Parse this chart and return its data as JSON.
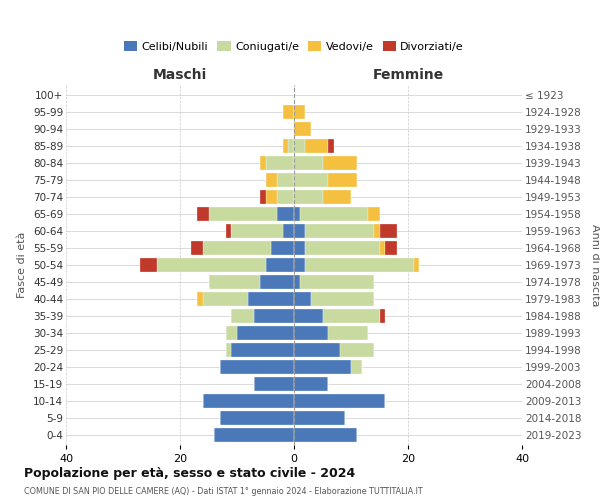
{
  "age_groups": [
    "0-4",
    "5-9",
    "10-14",
    "15-19",
    "20-24",
    "25-29",
    "30-34",
    "35-39",
    "40-44",
    "45-49",
    "50-54",
    "55-59",
    "60-64",
    "65-69",
    "70-74",
    "75-79",
    "80-84",
    "85-89",
    "90-94",
    "95-99",
    "100+"
  ],
  "birth_years": [
    "2019-2023",
    "2014-2018",
    "2009-2013",
    "2004-2008",
    "1999-2003",
    "1994-1998",
    "1989-1993",
    "1984-1988",
    "1979-1983",
    "1974-1978",
    "1969-1973",
    "1964-1968",
    "1959-1963",
    "1954-1958",
    "1949-1953",
    "1944-1948",
    "1939-1943",
    "1934-1938",
    "1929-1933",
    "1924-1928",
    "≤ 1923"
  ],
  "colors": {
    "celibi": "#4b78b8",
    "coniugati": "#c8daa0",
    "vedovi": "#f5c040",
    "divorziati": "#c0392b"
  },
  "maschi": {
    "celibi": [
      14,
      13,
      16,
      7,
      13,
      11,
      10,
      7,
      8,
      6,
      5,
      4,
      2,
      3,
      0,
      0,
      0,
      0,
      0,
      0,
      0
    ],
    "coniugati": [
      0,
      0,
      0,
      0,
      0,
      1,
      2,
      4,
      8,
      9,
      19,
      12,
      9,
      12,
      3,
      3,
      5,
      1,
      0,
      0,
      0
    ],
    "vedovi": [
      0,
      0,
      0,
      0,
      0,
      0,
      0,
      0,
      1,
      0,
      0,
      0,
      0,
      0,
      2,
      2,
      1,
      1,
      0,
      2,
      0
    ],
    "divorziati": [
      0,
      0,
      0,
      0,
      0,
      0,
      0,
      0,
      0,
      0,
      3,
      2,
      1,
      2,
      1,
      0,
      0,
      0,
      0,
      0,
      0
    ]
  },
  "femmine": {
    "celibi": [
      11,
      9,
      16,
      6,
      10,
      8,
      6,
      5,
      3,
      1,
      2,
      2,
      2,
      1,
      0,
      0,
      0,
      0,
      0,
      0,
      0
    ],
    "coniugati": [
      0,
      0,
      0,
      0,
      2,
      6,
      7,
      10,
      11,
      13,
      19,
      13,
      12,
      12,
      5,
      6,
      5,
      2,
      0,
      0,
      0
    ],
    "vedovi": [
      0,
      0,
      0,
      0,
      0,
      0,
      0,
      0,
      0,
      0,
      1,
      1,
      1,
      2,
      5,
      5,
      6,
      4,
      3,
      2,
      0
    ],
    "divorziati": [
      0,
      0,
      0,
      0,
      0,
      0,
      0,
      1,
      0,
      0,
      0,
      2,
      3,
      0,
      0,
      0,
      0,
      1,
      0,
      0,
      0
    ]
  },
  "xlim": 40,
  "title": "Popolazione per età, sesso e stato civile - 2024",
  "subtitle": "COMUNE DI SAN PIO DELLE CAMERE (AQ) - Dati ISTAT 1° gennaio 2024 - Elaborazione TUTTITALIA.IT",
  "ylabel_left": "Fasce di età",
  "ylabel_right": "Anni di nascita",
  "xlabel_left": "Maschi",
  "xlabel_right": "Femmine",
  "bg_color": "#ffffff",
  "grid_color": "#cccccc",
  "bar_height": 0.85
}
